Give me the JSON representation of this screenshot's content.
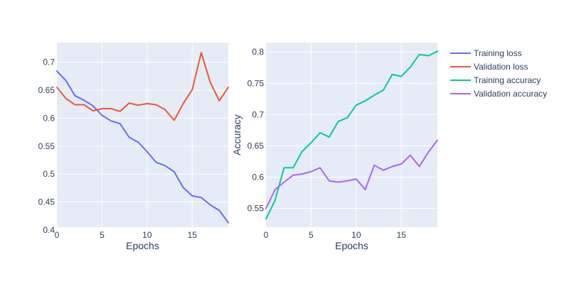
{
  "chart_data": [
    {
      "type": "line",
      "xlabel": "Epochs",
      "ylabel": "",
      "xlim": [
        0,
        19
      ],
      "ylim": [
        0.405,
        0.735
      ],
      "xticks": [
        0,
        5,
        10,
        15
      ],
      "yticks": [
        0.4,
        0.45,
        0.5,
        0.55,
        0.6,
        0.65,
        0.7
      ],
      "grid": true,
      "series": [
        {
          "name": "Training loss",
          "color": "#636efa",
          "x": [
            0,
            1,
            2,
            3,
            4,
            5,
            6,
            7,
            8,
            9,
            10,
            11,
            12,
            13,
            14,
            15,
            16,
            17,
            18,
            19
          ],
          "y": [
            0.684,
            0.667,
            0.64,
            0.632,
            0.622,
            0.605,
            0.595,
            0.59,
            0.566,
            0.557,
            0.54,
            0.521,
            0.515,
            0.504,
            0.476,
            0.461,
            0.458,
            0.445,
            0.435,
            0.413
          ]
        },
        {
          "name": "Validation loss",
          "color": "#ef553b",
          "x": [
            0,
            1,
            2,
            3,
            4,
            5,
            6,
            7,
            8,
            9,
            10,
            11,
            12,
            13,
            14,
            15,
            16,
            17,
            18,
            19
          ],
          "y": [
            0.655,
            0.635,
            0.624,
            0.624,
            0.613,
            0.617,
            0.617,
            0.612,
            0.627,
            0.623,
            0.626,
            0.624,
            0.615,
            0.596,
            0.626,
            0.651,
            0.717,
            0.664,
            0.631,
            0.655
          ]
        }
      ]
    },
    {
      "type": "line",
      "xlabel": "Epochs",
      "ylabel": "Accuracy",
      "xlim": [
        0,
        19
      ],
      "ylim": [
        0.52,
        0.815
      ],
      "xticks": [
        0,
        5,
        10,
        15
      ],
      "yticks": [
        0.55,
        0.6,
        0.65,
        0.7,
        0.75,
        0.8
      ],
      "grid": true,
      "series": [
        {
          "name": "Training accuracy",
          "color": "#00cc96",
          "x": [
            0,
            1,
            2,
            3,
            4,
            5,
            6,
            7,
            8,
            9,
            10,
            11,
            12,
            13,
            14,
            15,
            16,
            17,
            18,
            19
          ],
          "y": [
            0.533,
            0.563,
            0.615,
            0.615,
            0.641,
            0.655,
            0.671,
            0.664,
            0.689,
            0.695,
            0.715,
            0.722,
            0.731,
            0.739,
            0.764,
            0.761,
            0.776,
            0.796,
            0.794,
            0.801
          ]
        },
        {
          "name": "Validation accuracy",
          "color": "#ab63fa",
          "x": [
            0,
            1,
            2,
            3,
            4,
            5,
            6,
            7,
            8,
            9,
            10,
            11,
            12,
            13,
            14,
            15,
            16,
            17,
            18,
            19
          ],
          "y": [
            0.55,
            0.58,
            0.592,
            0.603,
            0.605,
            0.609,
            0.615,
            0.594,
            0.592,
            0.594,
            0.597,
            0.58,
            0.619,
            0.611,
            0.617,
            0.621,
            0.635,
            0.617,
            0.64,
            0.659
          ]
        }
      ]
    }
  ],
  "legend": {
    "placement": "right",
    "items": [
      {
        "label": "Training loss",
        "color": "#636efa"
      },
      {
        "label": "Validation loss",
        "color": "#ef553b"
      },
      {
        "label": "Training accuracy",
        "color": "#00cc96"
      },
      {
        "label": "Validation accuracy",
        "color": "#ab63fa"
      }
    ]
  },
  "style": {
    "plot_background": "#e5ecf6",
    "grid_color": "#ffffff",
    "text_color": "#2a3f5f"
  }
}
